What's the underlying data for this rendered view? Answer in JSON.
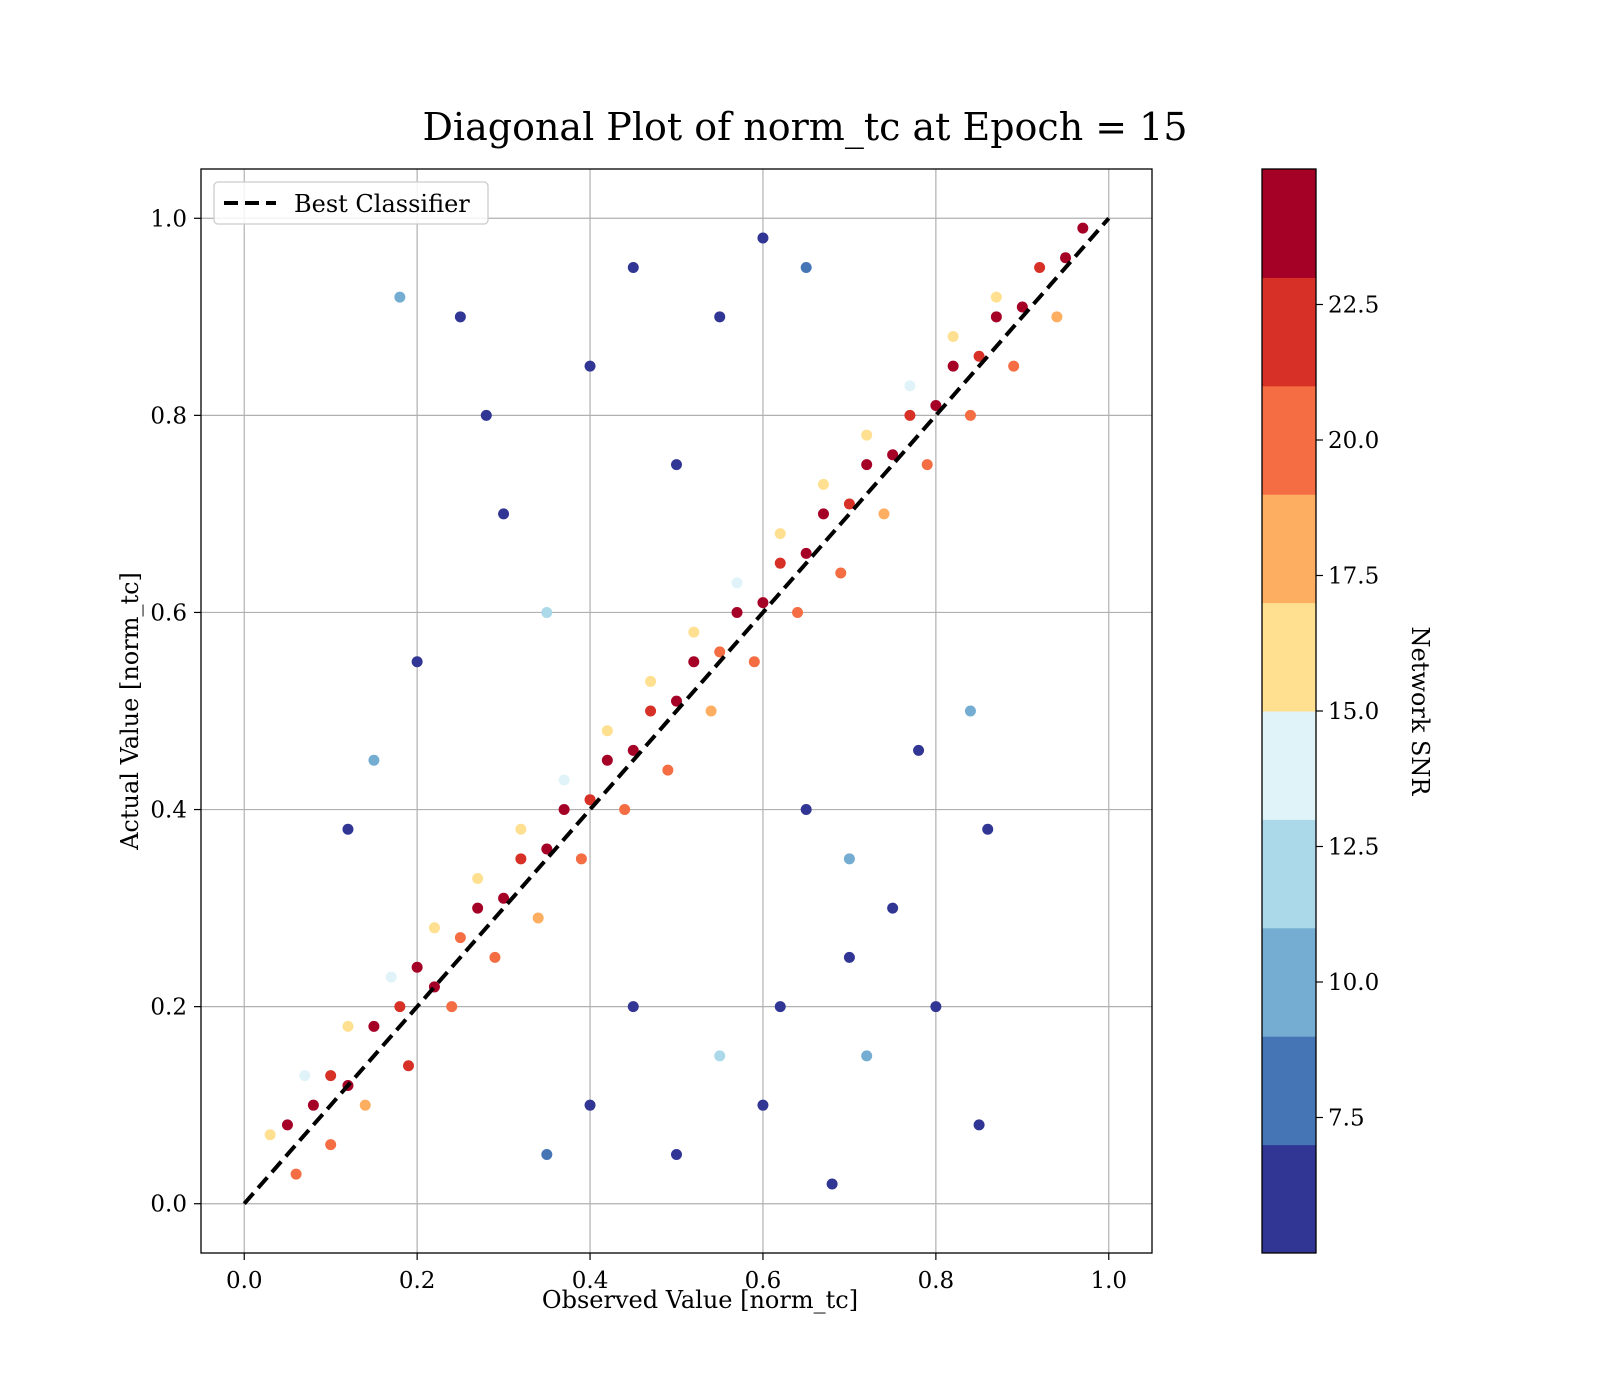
{
  "chart_data": {
    "type": "scatter",
    "title": "Diagonal Plot of norm_tc at Epoch = 15",
    "xlabel": "Observed Value [norm_tc]",
    "ylabel": "Actual Value [norm_tc]",
    "xlim": [
      -0.05,
      1.05
    ],
    "ylim": [
      -0.05,
      1.05
    ],
    "xticks": [
      "0.0",
      "0.2",
      "0.4",
      "0.6",
      "0.8",
      "1.0"
    ],
    "yticks": [
      "0.0",
      "0.2",
      "0.4",
      "0.6",
      "0.8",
      "1.0"
    ],
    "grid": true,
    "legend": {
      "location": "top-left",
      "entries": [
        "Best Classifier"
      ]
    },
    "reference_line": {
      "name": "Best Classifier",
      "x": [
        0,
        1
      ],
      "y": [
        0,
        1
      ],
      "style": "dashed",
      "color": "#000000"
    },
    "colorbar": {
      "label": "Network SNR",
      "range": [
        5.0,
        25.0
      ],
      "ticks": [
        "7.5",
        "10.0",
        "12.5",
        "15.0",
        "17.5",
        "20.0",
        "22.5"
      ],
      "tick_values": [
        7.5,
        10.0,
        12.5,
        15.0,
        17.5,
        20.0,
        22.5
      ],
      "colors": [
        "#313695",
        "#4575b4",
        "#74add1",
        "#abd9e9",
        "#e0f3f8",
        "#fee090",
        "#fdae61",
        "#f46d43",
        "#d73027",
        "#a50026"
      ],
      "colormap": "RdYlBu_r (discrete, 10 bins)"
    },
    "points": [
      [
        0.05,
        0.08,
        23.8
      ],
      [
        0.08,
        0.1,
        24.1
      ],
      [
        0.1,
        0.13,
        22.0
      ],
      [
        0.12,
        0.12,
        23.5
      ],
      [
        0.15,
        0.18,
        24.0
      ],
      [
        0.18,
        0.2,
        21.5
      ],
      [
        0.2,
        0.24,
        23.9
      ],
      [
        0.22,
        0.22,
        24.2
      ],
      [
        0.25,
        0.27,
        20.5
      ],
      [
        0.27,
        0.3,
        23.6
      ],
      [
        0.3,
        0.31,
        24.0
      ],
      [
        0.32,
        0.35,
        22.8
      ],
      [
        0.35,
        0.36,
        23.9
      ],
      [
        0.37,
        0.4,
        24.3
      ],
      [
        0.4,
        0.41,
        21.0
      ],
      [
        0.42,
        0.45,
        23.7
      ],
      [
        0.45,
        0.46,
        24.1
      ],
      [
        0.47,
        0.5,
        22.5
      ],
      [
        0.5,
        0.51,
        23.8
      ],
      [
        0.52,
        0.55,
        24.4
      ],
      [
        0.55,
        0.56,
        20.8
      ],
      [
        0.57,
        0.6,
        23.9
      ],
      [
        0.6,
        0.61,
        24.2
      ],
      [
        0.62,
        0.65,
        22.2
      ],
      [
        0.65,
        0.66,
        23.6
      ],
      [
        0.67,
        0.7,
        24.0
      ],
      [
        0.7,
        0.71,
        21.8
      ],
      [
        0.72,
        0.75,
        23.9
      ],
      [
        0.75,
        0.76,
        24.3
      ],
      [
        0.77,
        0.8,
        22.6
      ],
      [
        0.8,
        0.81,
        23.7
      ],
      [
        0.82,
        0.85,
        24.1
      ],
      [
        0.85,
        0.86,
        21.2
      ],
      [
        0.87,
        0.9,
        23.8
      ],
      [
        0.9,
        0.91,
        24.2
      ],
      [
        0.92,
        0.95,
        22.9
      ],
      [
        0.95,
        0.96,
        23.6
      ],
      [
        0.97,
        0.99,
        24.0
      ],
      [
        0.06,
        0.03,
        19.5
      ],
      [
        0.1,
        0.06,
        20.1
      ],
      [
        0.14,
        0.1,
        18.8
      ],
      [
        0.19,
        0.14,
        21.0
      ],
      [
        0.24,
        0.2,
        19.3
      ],
      [
        0.29,
        0.25,
        20.6
      ],
      [
        0.34,
        0.29,
        17.9
      ],
      [
        0.39,
        0.35,
        20.2
      ],
      [
        0.44,
        0.4,
        19.0
      ],
      [
        0.49,
        0.44,
        20.8
      ],
      [
        0.54,
        0.5,
        18.4
      ],
      [
        0.59,
        0.55,
        20.3
      ],
      [
        0.64,
        0.6,
        19.1
      ],
      [
        0.69,
        0.64,
        20.7
      ],
      [
        0.74,
        0.7,
        18.6
      ],
      [
        0.79,
        0.75,
        20.0
      ],
      [
        0.84,
        0.8,
        19.4
      ],
      [
        0.89,
        0.85,
        20.9
      ],
      [
        0.94,
        0.9,
        18.2
      ],
      [
        0.03,
        0.07,
        16.0
      ],
      [
        0.07,
        0.13,
        14.5
      ],
      [
        0.12,
        0.18,
        16.8
      ],
      [
        0.17,
        0.23,
        13.9
      ],
      [
        0.22,
        0.28,
        16.2
      ],
      [
        0.27,
        0.33,
        15.1
      ],
      [
        0.32,
        0.38,
        16.6
      ],
      [
        0.37,
        0.43,
        14.2
      ],
      [
        0.42,
        0.48,
        16.9
      ],
      [
        0.47,
        0.53,
        15.4
      ],
      [
        0.52,
        0.58,
        16.1
      ],
      [
        0.57,
        0.63,
        13.6
      ],
      [
        0.62,
        0.68,
        16.4
      ],
      [
        0.67,
        0.73,
        15.0
      ],
      [
        0.72,
        0.78,
        16.7
      ],
      [
        0.77,
        0.83,
        14.8
      ],
      [
        0.82,
        0.88,
        16.3
      ],
      [
        0.87,
        0.92,
        15.6
      ],
      [
        0.2,
        0.55,
        6.0
      ],
      [
        0.3,
        0.7,
        6.3
      ],
      [
        0.25,
        0.9,
        5.8
      ],
      [
        0.4,
        0.85,
        6.1
      ],
      [
        0.35,
        0.6,
        11.0
      ],
      [
        0.15,
        0.45,
        9.5
      ],
      [
        0.45,
        0.95,
        5.9
      ],
      [
        0.55,
        0.9,
        6.4
      ],
      [
        0.6,
        0.98,
        6.2
      ],
      [
        0.5,
        0.75,
        6.0
      ],
      [
        0.65,
        0.95,
        8.9
      ],
      [
        0.28,
        0.8,
        6.1
      ],
      [
        0.18,
        0.92,
        9.0
      ],
      [
        0.12,
        0.38,
        6.3
      ],
      [
        0.7,
        0.25,
        6.0
      ],
      [
        0.75,
        0.3,
        5.9
      ],
      [
        0.8,
        0.2,
        6.2
      ],
      [
        0.85,
        0.08,
        6.1
      ],
      [
        0.6,
        0.1,
        6.0
      ],
      [
        0.55,
        0.15,
        11.8
      ],
      [
        0.5,
        0.05,
        6.3
      ],
      [
        0.45,
        0.2,
        6.1
      ],
      [
        0.65,
        0.4,
        6.2
      ],
      [
        0.7,
        0.35,
        9.3
      ],
      [
        0.78,
        0.46,
        6.0
      ],
      [
        0.84,
        0.5,
        9.8
      ],
      [
        0.86,
        0.38,
        6.1
      ],
      [
        0.62,
        0.2,
        6.2
      ],
      [
        0.4,
        0.1,
        6.0
      ],
      [
        0.35,
        0.05,
        8.7
      ],
      [
        0.68,
        0.02,
        6.1
      ],
      [
        0.72,
        0.15,
        9.5
      ]
    ]
  }
}
